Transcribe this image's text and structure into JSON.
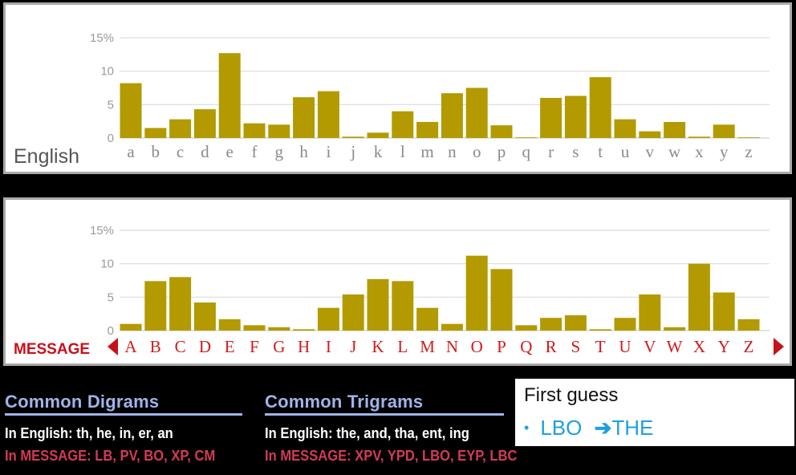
{
  "chart_data": [
    {
      "type": "bar",
      "title": "English",
      "categories": [
        "a",
        "b",
        "c",
        "d",
        "e",
        "f",
        "g",
        "h",
        "i",
        "j",
        "k",
        "l",
        "m",
        "n",
        "o",
        "p",
        "q",
        "r",
        "s",
        "t",
        "u",
        "v",
        "w",
        "x",
        "y",
        "z"
      ],
      "values": [
        8.2,
        1.5,
        2.8,
        4.3,
        12.7,
        2.2,
        2.0,
        6.1,
        7.0,
        0.2,
        0.8,
        4.0,
        2.4,
        6.7,
        7.5,
        1.9,
        0.1,
        6.0,
        6.3,
        9.1,
        2.8,
        1.0,
        2.4,
        0.2,
        2.0,
        0.1
      ],
      "yticks": [
        "0",
        "5",
        "10",
        "15%"
      ],
      "ylim": [
        0,
        15
      ],
      "grid": true,
      "colors": {
        "bar": "#b39a00"
      }
    },
    {
      "type": "bar",
      "title": "MESSAGE",
      "categories": [
        "A",
        "B",
        "C",
        "D",
        "E",
        "F",
        "G",
        "H",
        "I",
        "J",
        "K",
        "L",
        "M",
        "N",
        "O",
        "P",
        "Q",
        "R",
        "S",
        "T",
        "U",
        "V",
        "W",
        "X",
        "Y",
        "Z"
      ],
      "values": [
        1.0,
        7.4,
        8.0,
        4.2,
        1.7,
        0.8,
        0.5,
        0.2,
        3.4,
        5.4,
        7.7,
        7.4,
        3.4,
        1.0,
        11.2,
        9.2,
        0.8,
        1.9,
        2.3,
        0.2,
        1.9,
        5.4,
        0.5,
        10.0,
        5.7,
        1.7
      ],
      "yticks": [
        "0",
        "5",
        "10",
        "15%"
      ],
      "ylim": [
        0,
        15
      ],
      "grid": true,
      "colors": {
        "bar": "#b39a00",
        "label": "#d11a1a",
        "arrow": "#c8101a"
      }
    }
  ],
  "digrams": {
    "title": "Common Digrams",
    "english": "In English: th, he, in, er, an",
    "message": "In MESSAGE: LB, PV, BO, XP, CM"
  },
  "trigrams": {
    "title": "Common Trigrams",
    "english": "In English: the, and, tha, ent, ing",
    "message": "In MESSAGE: XPV, YPD, LBO, EYP, LBC"
  },
  "guess": {
    "title": "First guess",
    "bullet": "•",
    "from": "LBO",
    "arrow": "➔",
    "to": "THE"
  }
}
